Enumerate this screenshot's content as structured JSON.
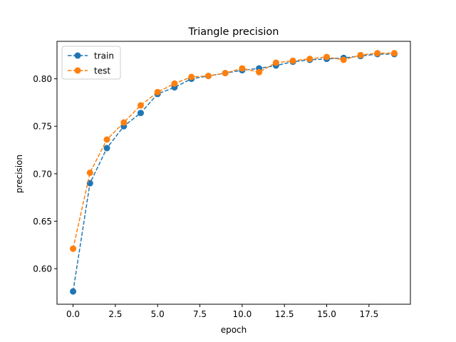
{
  "chart_data": {
    "type": "line",
    "title": "Triangle precision",
    "xlabel": "epoch",
    "ylabel": "precision",
    "xlim": [
      -0.95,
      19.95
    ],
    "ylim": [
      0.5625,
      0.8395
    ],
    "xticks": [
      0.0,
      2.5,
      5.0,
      7.5,
      10.0,
      12.5,
      15.0,
      17.5
    ],
    "xtick_labels": [
      "0.0",
      "2.5",
      "5.0",
      "7.5",
      "10.0",
      "12.5",
      "15.0",
      "17.5"
    ],
    "yticks": [
      0.6,
      0.65,
      0.7,
      0.75,
      0.8
    ],
    "ytick_labels": [
      "0.60",
      "0.65",
      "0.70",
      "0.75",
      "0.80"
    ],
    "grid": false,
    "legend_position": "top-left",
    "x": [
      0,
      1,
      2,
      3,
      4,
      5,
      6,
      7,
      8,
      9,
      10,
      11,
      12,
      13,
      14,
      15,
      16,
      17,
      18,
      19
    ],
    "series": [
      {
        "name": "train",
        "color": "#1f77b4",
        "line_style": "dashed",
        "marker": "circle",
        "values": [
          0.576,
          0.69,
          0.727,
          0.75,
          0.764,
          0.784,
          0.791,
          0.8,
          0.803,
          0.806,
          0.809,
          0.811,
          0.814,
          0.818,
          0.82,
          0.821,
          0.822,
          0.824,
          0.826,
          0.826
        ]
      },
      {
        "name": "test",
        "color": "#ff7f0e",
        "line_style": "dashed",
        "marker": "circle",
        "values": [
          0.621,
          0.701,
          0.736,
          0.754,
          0.772,
          0.786,
          0.795,
          0.802,
          0.803,
          0.806,
          0.811,
          0.807,
          0.817,
          0.819,
          0.821,
          0.823,
          0.82,
          0.825,
          0.827,
          0.827
        ]
      }
    ]
  }
}
